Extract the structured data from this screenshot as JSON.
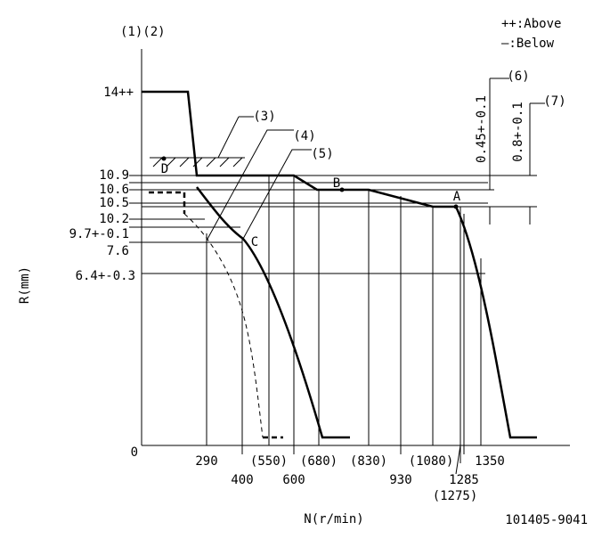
{
  "header": {
    "axis_label": "(1)(2)",
    "y_title": "R(mm)",
    "x_title": "N(r/min)",
    "doc_number": "101405-9041"
  },
  "legend": [
    "++:Above",
    "—:Below"
  ],
  "y_labels": [
    "14++",
    "10.9",
    "10.6",
    "10.5",
    "10.2",
    "9.7+-0.1",
    "7.6",
    "6.4+-0.3",
    "0"
  ],
  "x_labels": [
    "290",
    "(550)",
    "(680)",
    "(830)",
    "(1080)",
    "1350",
    "400",
    "600",
    "930",
    "1285",
    "(1275)"
  ],
  "callouts": [
    "(3)",
    "(4)",
    "(5)",
    "(6)",
    "(7)"
  ],
  "points": [
    "D",
    "B",
    "A",
    "C"
  ],
  "tolerances": [
    "0.45+-0.1",
    "0.8+-0.1"
  ]
}
